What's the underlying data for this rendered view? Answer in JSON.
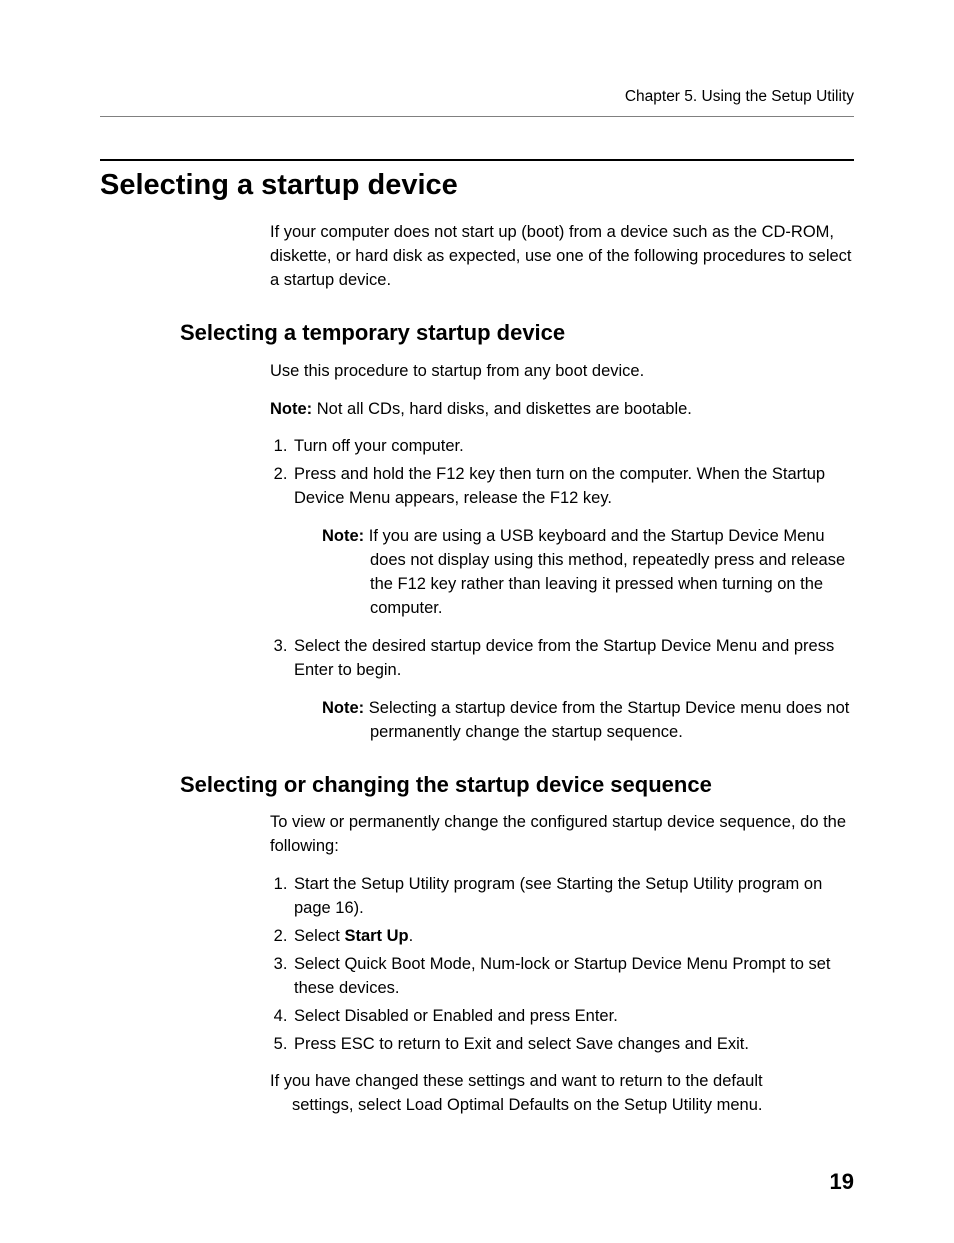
{
  "header": {
    "chapter_label": "Chapter 5. Using the Setup Utility"
  },
  "section": {
    "h1": "Selecting a startup device",
    "intro": "If your computer does not start up (boot) from a device such as the CD-ROM, diskette, or hard disk as expected, use one of the  following procedures to select a startup device."
  },
  "sub1": {
    "h2": "Selecting a temporary startup device",
    "intro": "Use this procedure to startup from any boot device.",
    "note_label": "Note:",
    "note_text": " Not all CDs, hard disks, and  diskettes are bootable.",
    "step1": "Turn off your computer.",
    "step2": "Press and hold the F12 key then turn on the computer. When the Startup Device Menu appears, release the F12 key.",
    "step2_note_label": "Note:",
    "step2_note_text": " If you are using a USB keyboard and the Startup Device Menu does not display using this method, repeatedly press and release the F12 key rather than leaving it pressed when turning on the computer.",
    "step3": "Select the desired startup device from the Startup Device Menu and press Enter to begin.",
    "step3_note_label": "Note:",
    "step3_note_text": " Selecting a startup device from the Startup Device menu does not permanently change the startup sequence."
  },
  "sub2": {
    "h2": "Selecting or changing the startup device sequence",
    "intro": "To view or permanently change the configured startup device sequence, do the following:",
    "step1": "Start the Setup Utility program (see  Starting the Setup Utility program on page 16).",
    "step2_pre": "Select ",
    "step2_bold": "Start Up",
    "step2_post": ".",
    "step3": "Select Quick Boot Mode, Num-lock or Startup Device Menu Prompt to set these devices.",
    "step4": "Select Disabled or Enabled and press Enter.",
    "step5": "Press ESC to return to Exit and select Save changes and Exit.",
    "closing_line1": "If you have changed these settings and want to return to the default",
    "closing_line2": "settings, select Load Optimal Defaults on the Setup Utility menu."
  },
  "page_number": "19"
}
